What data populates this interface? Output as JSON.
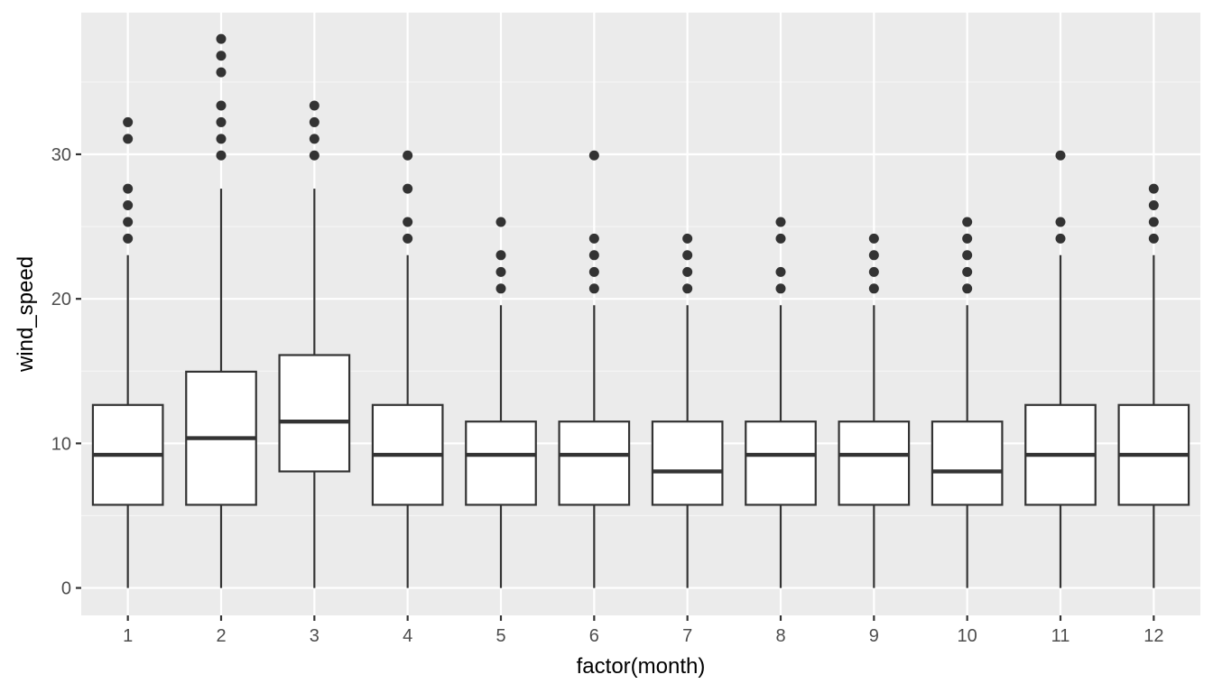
{
  "chart_data": {
    "type": "boxplot",
    "title": "",
    "xlabel": "factor(month)",
    "ylabel": "wind_speed",
    "ylim": [
      -1.9,
      39.8
    ],
    "y_ticks": [
      0,
      10,
      20,
      30
    ],
    "y_tick_labels": [
      "0",
      "10",
      "20",
      "30"
    ],
    "grid": true,
    "categories": [
      "1",
      "2",
      "3",
      "4",
      "5",
      "6",
      "7",
      "8",
      "9",
      "10",
      "11",
      "12"
    ],
    "boxes": [
      {
        "category": "1",
        "whisker_low": 0,
        "q1": 5.75,
        "median": 9.21,
        "q3": 12.66,
        "whisker_high": 23.02,
        "outliers": [
          24.17,
          25.32,
          26.47,
          27.62,
          31.07,
          32.22
        ]
      },
      {
        "category": "2",
        "whisker_low": 0,
        "q1": 5.75,
        "median": 10.36,
        "q3": 14.96,
        "whisker_high": 27.62,
        "outliers": [
          29.92,
          31.07,
          32.22,
          33.37,
          35.67,
          36.82,
          37.98
        ]
      },
      {
        "category": "3",
        "whisker_low": 0,
        "q1": 8.06,
        "median": 11.51,
        "q3": 16.11,
        "whisker_high": 27.62,
        "outliers": [
          29.92,
          31.07,
          32.22,
          33.37
        ]
      },
      {
        "category": "4",
        "whisker_low": 0,
        "q1": 5.75,
        "median": 9.21,
        "q3": 12.66,
        "whisker_high": 23.02,
        "outliers": [
          24.17,
          25.32,
          27.62,
          29.92
        ]
      },
      {
        "category": "5",
        "whisker_low": 0,
        "q1": 5.75,
        "median": 9.21,
        "q3": 11.51,
        "whisker_high": 19.56,
        "outliers": [
          20.71,
          21.86,
          23.02,
          25.32
        ]
      },
      {
        "category": "6",
        "whisker_low": 0,
        "q1": 5.75,
        "median": 9.21,
        "q3": 11.51,
        "whisker_high": 19.56,
        "outliers": [
          20.71,
          21.86,
          23.02,
          24.17,
          29.92
        ]
      },
      {
        "category": "7",
        "whisker_low": 0,
        "q1": 5.75,
        "median": 8.06,
        "q3": 11.51,
        "whisker_high": 19.56,
        "outliers": [
          20.71,
          21.86,
          23.02,
          24.17
        ]
      },
      {
        "category": "8",
        "whisker_low": 0,
        "q1": 5.75,
        "median": 9.21,
        "q3": 11.51,
        "whisker_high": 19.56,
        "outliers": [
          20.71,
          21.86,
          24.17,
          25.32
        ]
      },
      {
        "category": "9",
        "whisker_low": 0,
        "q1": 5.75,
        "median": 9.21,
        "q3": 11.51,
        "whisker_high": 19.56,
        "outliers": [
          20.71,
          21.86,
          23.02,
          24.17
        ]
      },
      {
        "category": "10",
        "whisker_low": 0,
        "q1": 5.75,
        "median": 8.06,
        "q3": 11.51,
        "whisker_high": 19.56,
        "outliers": [
          20.71,
          21.86,
          23.02,
          24.17,
          25.32
        ]
      },
      {
        "category": "11",
        "whisker_low": 0,
        "q1": 5.75,
        "median": 9.21,
        "q3": 12.66,
        "whisker_high": 23.02,
        "outliers": [
          24.17,
          25.32,
          29.92
        ]
      },
      {
        "category": "12",
        "whisker_low": 0,
        "q1": 5.75,
        "median": 9.21,
        "q3": 12.66,
        "whisker_high": 23.02,
        "outliers": [
          24.17,
          25.32,
          26.47,
          27.62
        ]
      }
    ],
    "colors": {
      "panel_background": "#ebebeb",
      "grid_major": "#ffffff",
      "grid_minor": "#f5f5f5",
      "box_fill": "#ffffff",
      "box_line": "#333333",
      "outlier": "#333333",
      "tick_text": "#4d4d4d",
      "tick_mark": "#333333",
      "axis_title": "#000000"
    }
  }
}
